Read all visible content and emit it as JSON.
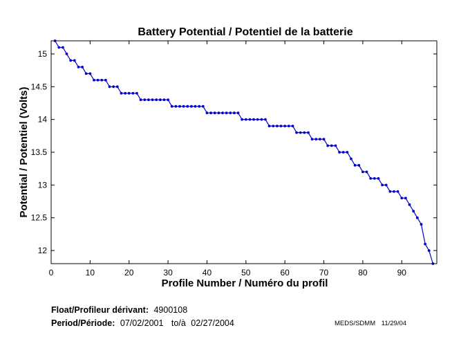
{
  "chart_data": {
    "type": "line",
    "title": "Battery Potential / Potentiel de la batterie",
    "xlabel": "Profile Number / Numéro du profil",
    "ylabel": "Potential / Potentiel (Volts)",
    "xlim": [
      0,
      99
    ],
    "ylim": [
      11.8,
      15.2
    ],
    "xticks": [
      0,
      10,
      20,
      30,
      40,
      50,
      60,
      70,
      80,
      90
    ],
    "yticks": [
      12,
      12.5,
      13,
      13.5,
      14,
      14.5,
      15
    ],
    "grid": false,
    "marker": "dot",
    "series_color": "#0000cc",
    "x": [
      1,
      2,
      3,
      4,
      5,
      6,
      7,
      8,
      9,
      10,
      11,
      12,
      13,
      14,
      15,
      16,
      17,
      18,
      19,
      20,
      21,
      22,
      23,
      24,
      25,
      26,
      27,
      28,
      29,
      30,
      31,
      32,
      33,
      34,
      35,
      36,
      37,
      38,
      39,
      40,
      41,
      42,
      43,
      44,
      45,
      46,
      47,
      48,
      49,
      50,
      51,
      52,
      53,
      54,
      55,
      56,
      57,
      58,
      59,
      60,
      61,
      62,
      63,
      64,
      65,
      66,
      67,
      68,
      69,
      70,
      71,
      72,
      73,
      74,
      75,
      76,
      77,
      78,
      79,
      80,
      81,
      82,
      83,
      84,
      85,
      86,
      87,
      88,
      89,
      90,
      91,
      92,
      93,
      94,
      95,
      96,
      97,
      98
    ],
    "values": [
      15.2,
      15.1,
      15.1,
      15.0,
      14.9,
      14.9,
      14.8,
      14.8,
      14.7,
      14.7,
      14.6,
      14.6,
      14.6,
      14.6,
      14.5,
      14.5,
      14.5,
      14.4,
      14.4,
      14.4,
      14.4,
      14.4,
      14.3,
      14.3,
      14.3,
      14.3,
      14.3,
      14.3,
      14.3,
      14.3,
      14.2,
      14.2,
      14.2,
      14.2,
      14.2,
      14.2,
      14.2,
      14.2,
      14.2,
      14.1,
      14.1,
      14.1,
      14.1,
      14.1,
      14.1,
      14.1,
      14.1,
      14.1,
      14.0,
      14.0,
      14.0,
      14.0,
      14.0,
      14.0,
      14.0,
      13.9,
      13.9,
      13.9,
      13.9,
      13.9,
      13.9,
      13.9,
      13.8,
      13.8,
      13.8,
      13.8,
      13.7,
      13.7,
      13.7,
      13.7,
      13.6,
      13.6,
      13.6,
      13.5,
      13.5,
      13.5,
      13.4,
      13.3,
      13.3,
      13.2,
      13.2,
      13.1,
      13.1,
      13.1,
      13.0,
      13.0,
      12.9,
      12.9,
      12.9,
      12.8,
      12.8,
      12.7,
      12.6,
      12.5,
      12.4,
      12.1,
      12.0,
      11.8
    ]
  },
  "info": {
    "float_label": "Float/Profileur dérivant:",
    "float_value": "4900108",
    "period_label": "Period/Période:",
    "start_date": "07/02/2001",
    "to_label": "to/à",
    "end_date": "02/27/2004"
  },
  "stamp": {
    "source": "MEDS/SDMM",
    "date": "11/29/04"
  }
}
